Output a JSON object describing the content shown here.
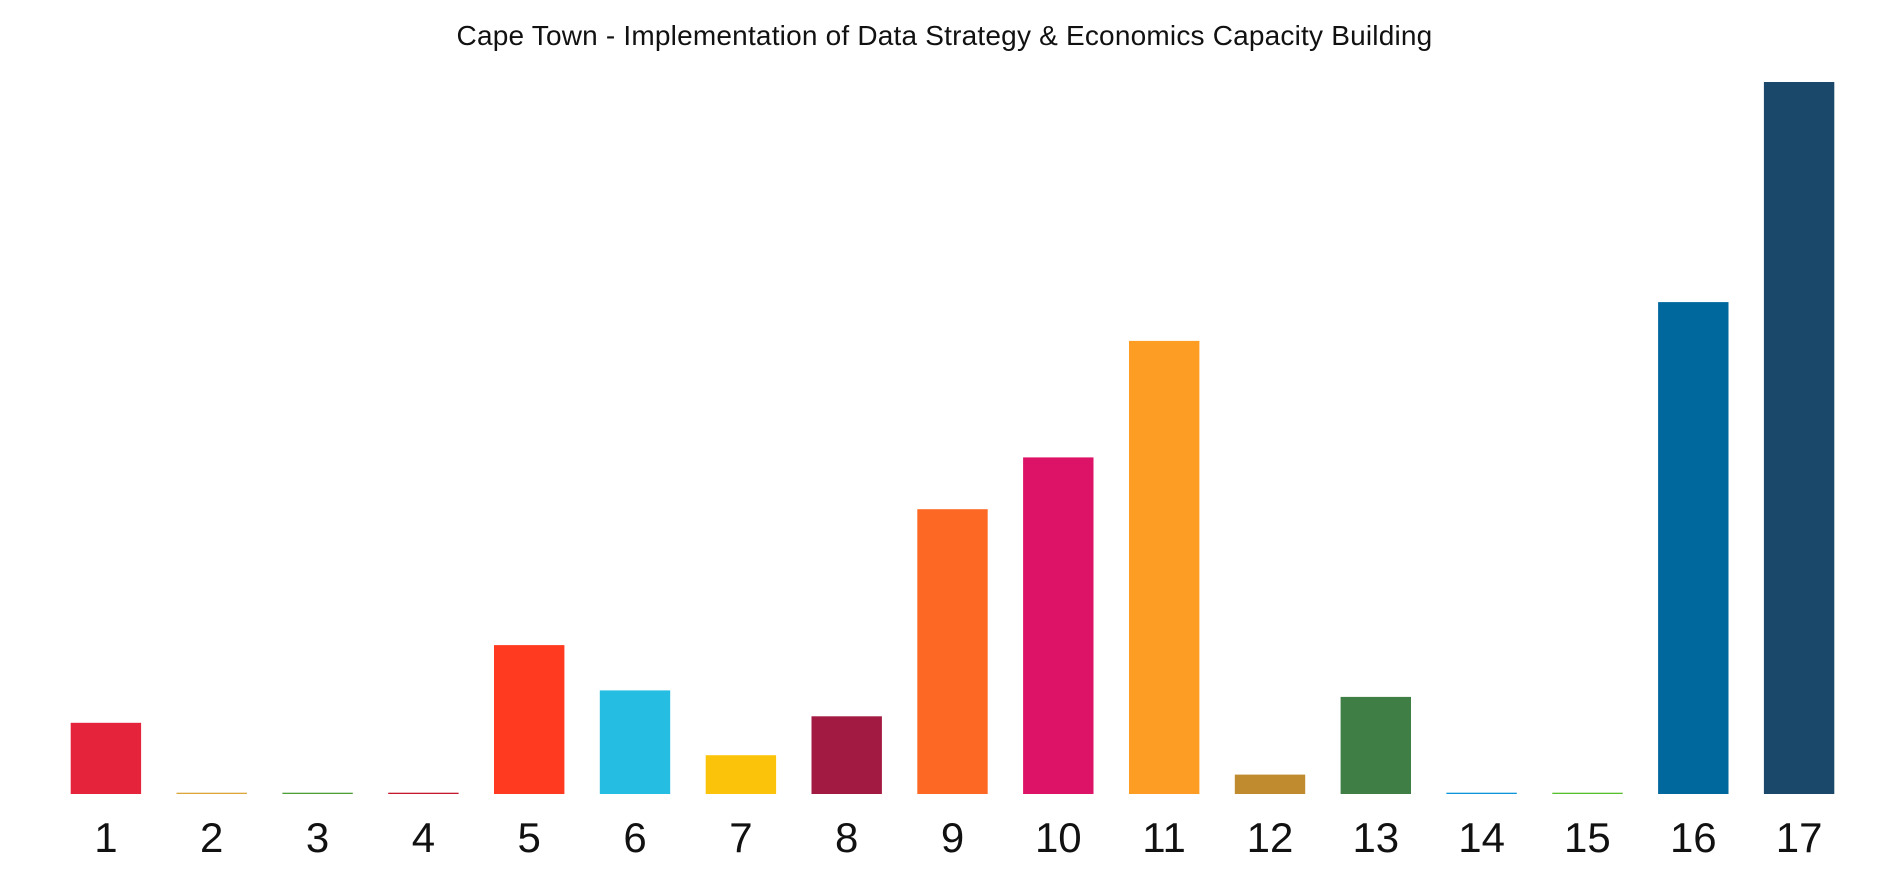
{
  "chart_data": {
    "type": "bar",
    "title": "Cape Town - Implementation of Data Strategy & Economics Capacity Building",
    "xlabel": "",
    "ylabel": "",
    "categories": [
      "1",
      "2",
      "3",
      "4",
      "5",
      "6",
      "7",
      "8",
      "9",
      "10",
      "11",
      "12",
      "13",
      "14",
      "15",
      "16",
      "17"
    ],
    "values": [
      11,
      0.2,
      0.2,
      0.2,
      23,
      16,
      6,
      12,
      44,
      52,
      70,
      3,
      15,
      0.2,
      0.2,
      76,
      110
    ],
    "colors": [
      "#E5243B",
      "#DDA63A",
      "#4C9F38",
      "#C5192D",
      "#FF3A21",
      "#26BDE2",
      "#FCC30B",
      "#A21942",
      "#FD6925",
      "#DD1367",
      "#FD9D24",
      "#BF8B2E",
      "#3F7E44",
      "#0A97D9",
      "#56C02B",
      "#00689D",
      "#19486A"
    ],
    "ylim": [
      0,
      110
    ],
    "grid": false,
    "legend": "none"
  }
}
